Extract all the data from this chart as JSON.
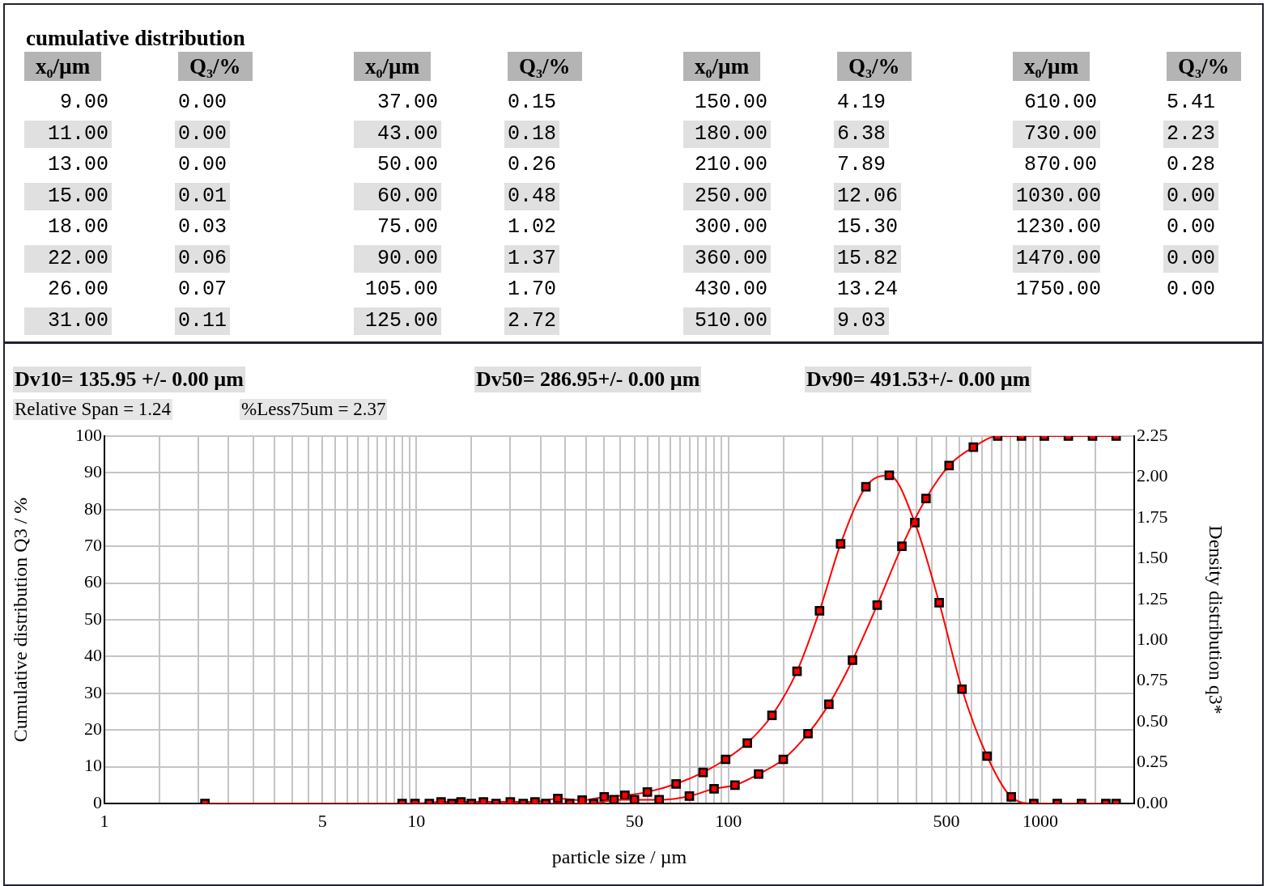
{
  "chart_data": [
    {
      "type": "other",
      "title": "cumulative distribution",
      "xlabel": "x₀/µm",
      "ylabel": "Q₃/%",
      "categories": [
        "9.00",
        "11.00",
        "13.00",
        "15.00",
        "18.00",
        "22.00",
        "26.00",
        "31.00",
        "37.00",
        "43.00",
        "50.00",
        "60.00",
        "75.00",
        "90.00",
        "105.00",
        "125.00",
        "150.00",
        "180.00",
        "210.00",
        "250.00",
        "300.00",
        "360.00",
        "430.00",
        "510.00",
        "610.00",
        "730.00",
        "870.00",
        "1030.00",
        "1230.00",
        "1470.00",
        "1750.00"
      ],
      "value_labels": [
        "0.00",
        "0.00",
        "0.00",
        "0.01",
        "0.03",
        "0.06",
        "0.07",
        "0.11",
        "0.15",
        "0.18",
        "0.26",
        "0.48",
        "1.02",
        "1.37",
        "1.70",
        "2.72",
        "4.19",
        "6.38",
        "7.89",
        "12.06",
        "15.30",
        "15.82",
        "13.24",
        "9.03",
        "5.41",
        "2.23",
        "0.28",
        "0.00",
        "0.00",
        "0.00",
        "0.00"
      ]
    },
    {
      "type": "line",
      "xlabel": "particle size / µm",
      "ylabel": "Cumulative distribution Q3 / %",
      "y2label": "Density distribution q3*",
      "annotations": [
        "Dv10= 135.95 +/- 0.00 µm",
        "Dv50= 286.95+/- 0.00 µm",
        "Dv90= 491.53+/- 0.00 µm",
        "Relative Span = 1.24",
        "%Less75um =  2.37"
      ],
      "log": "x",
      "xlim": [
        1,
        2000
      ],
      "xticks": [
        1,
        {
          "value": 1.5,
          "label": null
        },
        {
          "value": 2,
          "label": null
        },
        {
          "value": 2.5,
          "label": null
        },
        {
          "value": 3,
          "label": null
        },
        {
          "value": 3.5,
          "label": null
        },
        {
          "value": 4,
          "label": null
        },
        {
          "value": 4.5,
          "label": null
        },
        5,
        {
          "value": 5.5,
          "label": null
        },
        {
          "value": 6,
          "label": null
        },
        {
          "value": 6.5,
          "label": null
        },
        {
          "value": 7,
          "label": null
        },
        {
          "value": 7.5,
          "label": null
        },
        {
          "value": 8,
          "label": null
        },
        {
          "value": 8.5,
          "label": null
        },
        {
          "value": 9,
          "label": null
        },
        {
          "value": 9.5,
          "label": null
        },
        10,
        {
          "value": 15,
          "label": null
        },
        {
          "value": 20,
          "label": null
        },
        {
          "value": 25,
          "label": null
        },
        {
          "value": 30,
          "label": null
        },
        {
          "value": 35,
          "label": null
        },
        {
          "value": 40,
          "label": null
        },
        {
          "value": 45,
          "label": null
        },
        50,
        {
          "value": 55,
          "label": null
        },
        {
          "value": 60,
          "label": null
        },
        {
          "value": 65,
          "label": null
        },
        {
          "value": 70,
          "label": null
        },
        {
          "value": 75,
          "label": null
        },
        {
          "value": 80,
          "label": null
        },
        {
          "value": 85,
          "label": null
        },
        {
          "value": 90,
          "label": null
        },
        {
          "value": 95,
          "label": null
        },
        100,
        {
          "value": 150,
          "label": null
        },
        {
          "value": 200,
          "label": null
        },
        {
          "value": 250,
          "label": null
        },
        {
          "value": 300,
          "label": null
        },
        {
          "value": 350,
          "label": null
        },
        {
          "value": 400,
          "label": null
        },
        {
          "value": 450,
          "label": null
        },
        500,
        {
          "value": 550,
          "label": null
        },
        {
          "value": 600,
          "label": null
        },
        {
          "value": 650,
          "label": null
        },
        {
          "value": 700,
          "label": null
        },
        {
          "value": 750,
          "label": null
        },
        {
          "value": 800,
          "label": null
        },
        {
          "value": 850,
          "label": null
        },
        {
          "value": 900,
          "label": null
        },
        {
          "value": 950,
          "label": null
        },
        1000,
        {
          "value": 1500,
          "label": null
        }
      ],
      "ylim": [
        0,
        100
      ],
      "yticks": [
        0,
        10,
        20,
        30,
        40,
        50,
        60,
        70,
        80,
        90,
        100
      ],
      "y2lim": [
        0,
        2.25
      ],
      "y2ticks": [
        {
          "value": 0,
          "label": "0.00"
        },
        {
          "value": 0.25,
          "label": "0.25"
        },
        {
          "value": 0.5,
          "label": "0.50"
        },
        {
          "value": 0.75,
          "label": "0.75"
        },
        {
          "value": 1,
          "label": "1.00"
        },
        {
          "value": 1.25,
          "label": "1.25"
        },
        {
          "value": 1.5,
          "label": "1.50"
        },
        {
          "value": 1.75,
          "label": "1.75"
        },
        {
          "value": 2,
          "label": "2.00"
        },
        {
          "value": 2.25,
          "label": "2.25"
        }
      ],
      "grid": true,
      "marker": "square",
      "line_style": "solid",
      "series": [
        {
          "color": "#ff0000",
          "x": [
            9,
            11,
            13,
            15,
            18,
            22,
            26,
            31,
            37,
            43,
            50,
            60,
            75,
            90,
            105,
            125,
            150,
            180,
            210,
            250,
            300,
            360,
            430,
            510,
            610,
            730,
            870,
            1030,
            1230,
            1470,
            1750
          ],
          "values": [
            0,
            0,
            0,
            0,
            0,
            0,
            0,
            0,
            0,
            1,
            1,
            1,
            2,
            4,
            5,
            8,
            12,
            19,
            27,
            39,
            54,
            70,
            83,
            92,
            97,
            100,
            100,
            100,
            100,
            100,
            100
          ]
        },
        {
          "color": "#ff0000",
          "axis": "y2",
          "x": [
            2.1,
            9.9,
            12,
            13.9,
            16.4,
            20,
            24,
            28.4,
            34,
            40,
            46.6,
            55,
            68,
            83,
            98,
            115,
            138,
            166,
            196,
            229,
            276,
            328,
            396,
            474,
            561,
            675,
            807,
            953,
            1133,
            1355,
            1622,
            1750
          ],
          "values": [
            0,
            0,
            0.01,
            0.01,
            0.01,
            0.01,
            0.01,
            0.03,
            0.02,
            0.04,
            0.05,
            0.07,
            0.12,
            0.19,
            0.27,
            0.37,
            0.54,
            0.81,
            1.18,
            1.59,
            1.94,
            2.01,
            1.72,
            1.23,
            0.7,
            0.29,
            0.04,
            0,
            0,
            0,
            0,
            0
          ]
        }
      ]
    }
  ]
}
